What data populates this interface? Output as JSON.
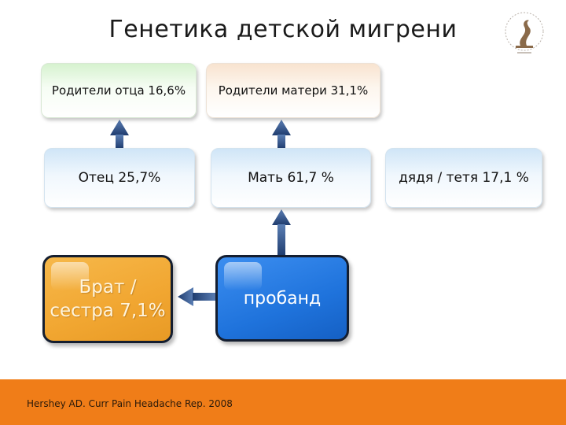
{
  "title": "Генетика детской мигрени",
  "nodes": {
    "paternal_grandparents": "Родители отца 16,6%",
    "maternal_grandparents": "Родители матери 31,1%",
    "father": "Отец 25,7%",
    "mother": "Мать 61,7 %",
    "aunt_uncle": "дядя / тетя 17,1 %",
    "sibling_line1": "Брат /",
    "sibling_line2": "сестра 7,1%",
    "proband": "пробанд"
  },
  "colors": {
    "footer": "#f07d18",
    "sibling_box": "#f1a631",
    "proband_box": "#1f73dc",
    "arrow": "#3a5f99"
  },
  "logo": {
    "icon": "medical-emblem-icon"
  },
  "footer": {
    "citation": "Hershey AD. Curr Pain Headache Rep. 2008"
  }
}
